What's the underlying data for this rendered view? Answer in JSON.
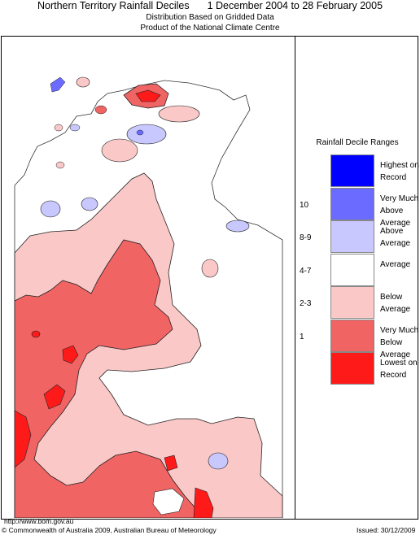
{
  "header": {
    "title_region": "Northern Territory Rainfall Deciles",
    "title_period": "1 December 2004 to 28 February 2005",
    "subtitle_line1": "Distribution Based on Gridded Data",
    "subtitle_line2": "Product of the National Climate Centre"
  },
  "legend": {
    "title": "Rainfall Decile Ranges",
    "items": [
      {
        "decile": "",
        "label": "Highest on Record",
        "color": "#0000ff"
      },
      {
        "decile": "10",
        "label": "Very Much Above Average",
        "color": "#6b6bff"
      },
      {
        "decile": "8-9",
        "label": "Above Average",
        "color": "#c8c8ff"
      },
      {
        "decile": "4-7",
        "label": "Average",
        "color": "#ffffff"
      },
      {
        "decile": "2-3",
        "label": "Below Average",
        "color": "#fbc8c8"
      },
      {
        "decile": "1",
        "label": "Very Much Below Average",
        "color": "#f06464"
      },
      {
        "decile": "",
        "label": "Lowest on Record",
        "color": "#ff1a1a"
      }
    ]
  },
  "footer": {
    "url": "http://www.bom.gov.au",
    "copyright": "© Commonwealth of Australia 2009, Australian Bureau of Meteorology",
    "issued": "Issued: 30/12/2009"
  },
  "colors": {
    "above_average": "#c8c8ff",
    "very_much_above": "#6b6bff",
    "below_average": "#fbc8c8",
    "very_much_below": "#f06464",
    "lowest_on_record": "#ff1a1a"
  }
}
